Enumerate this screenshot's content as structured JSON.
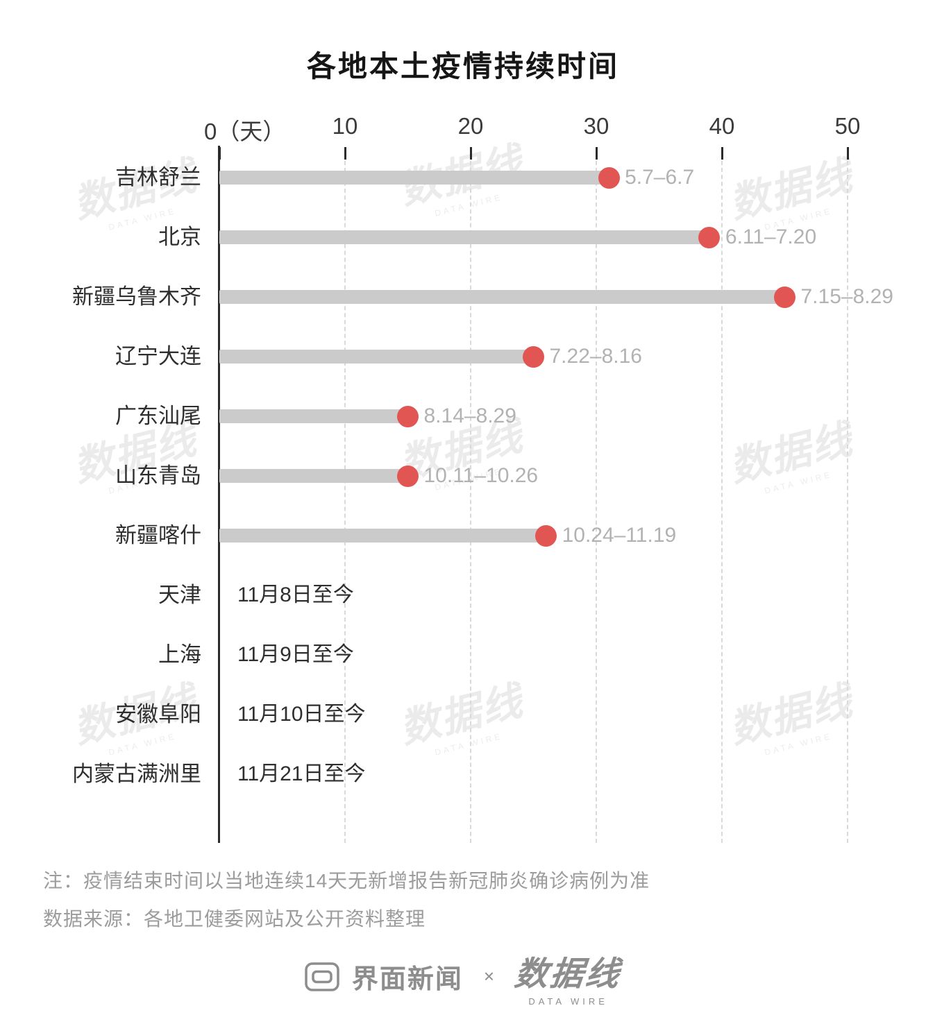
{
  "title": "各地本土疫情持续时间",
  "chart_data": {
    "type": "bar",
    "orientation": "horizontal",
    "title": "各地本土疫情持续时间",
    "xlabel": "天",
    "xlim": [
      0,
      50
    ],
    "grid": "vertical-dashed",
    "xticks": [
      0,
      10,
      20,
      30,
      40,
      50
    ],
    "xtick_labels": [
      "0（天）",
      "10",
      "20",
      "30",
      "40",
      "50"
    ],
    "categories": [
      "吉林舒兰",
      "北京",
      "新疆乌鲁木齐",
      "辽宁大连",
      "广东汕尾",
      "山东青岛",
      "新疆喀什",
      "天津",
      "上海",
      "安徽阜阳",
      "内蒙古满洲里"
    ],
    "rows": [
      {
        "label": "吉林舒兰",
        "days": 31,
        "period": "5.7–6.7"
      },
      {
        "label": "北京",
        "days": 39,
        "period": "6.11–7.20"
      },
      {
        "label": "新疆乌鲁木齐",
        "days": 45,
        "period": "7.15–8.29"
      },
      {
        "label": "辽宁大连",
        "days": 25,
        "period": "7.22–8.16"
      },
      {
        "label": "广东汕尾",
        "days": 15,
        "period": "8.14–8.29"
      },
      {
        "label": "山东青岛",
        "days": 15,
        "period": "10.11–10.26"
      },
      {
        "label": "新疆喀什",
        "days": 26,
        "period": "10.24–11.19"
      },
      {
        "label": "天津",
        "days": null,
        "ongoing_text": "11月8日至今"
      },
      {
        "label": "上海",
        "days": null,
        "ongoing_text": "11月9日至今"
      },
      {
        "label": "安徽阜阳",
        "days": null,
        "ongoing_text": "11月10日至今"
      },
      {
        "label": "内蒙古满洲里",
        "days": null,
        "ongoing_text": "11月21日至今"
      }
    ],
    "colors": {
      "bar": "#cbcbcb",
      "dot": "#e15552",
      "grid": "#d9d9d9",
      "axis": "#2b2b2b",
      "period_label": "#b2b2b2"
    }
  },
  "notes": {
    "note1": "注：疫情结束时间以当地连续14天无新增报告新冠肺炎确诊病例为准",
    "note2": "数据来源：各地卫健委网站及公开资料整理"
  },
  "footer": {
    "brand1": "界面新闻",
    "separator": "×",
    "brand2": "数据线",
    "brand2_sub": "DATA WIRE"
  },
  "watermark": {
    "text": "数据线",
    "sub": "DATA WIRE"
  }
}
